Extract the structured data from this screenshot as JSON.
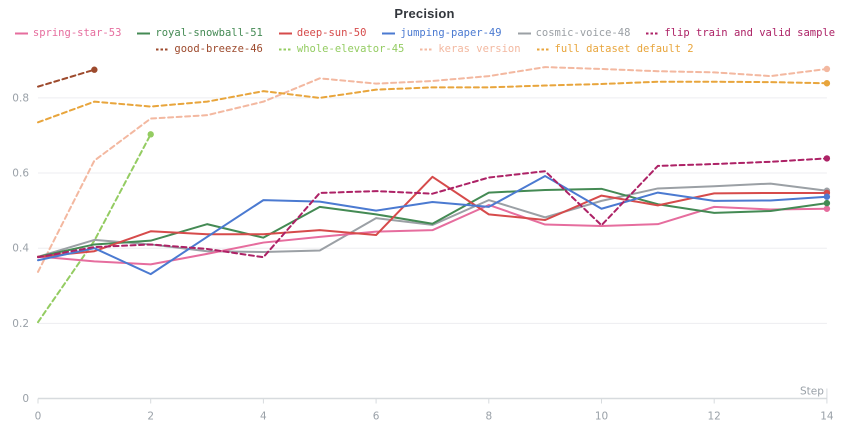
{
  "title": "Precision",
  "chart_data": {
    "type": "line",
    "title": "Precision",
    "xlabel": "Step",
    "ylabel": "",
    "xlim": [
      0,
      14
    ],
    "ylim": [
      0,
      0.95
    ],
    "grid": true,
    "legend_position": "top",
    "x_ticks": [
      0,
      2,
      4,
      6,
      8,
      10,
      12,
      14
    ],
    "y_ticks": [
      0,
      0.2,
      0.4,
      0.6,
      0.8
    ],
    "x": [
      0,
      1,
      2,
      3,
      4,
      5,
      6,
      7,
      8,
      9,
      10,
      11,
      12,
      13,
      14
    ],
    "series": [
      {
        "name": "keras version",
        "color": "#f3b8a0",
        "dashed": true,
        "values": [
          0.337,
          0.633,
          0.745,
          0.754,
          0.79,
          0.852,
          0.838,
          0.845,
          0.858,
          0.882,
          0.877,
          0.871,
          0.868,
          0.858,
          0.877
        ]
      },
      {
        "name": "full dataset default 2",
        "color": "#e8a53c",
        "dashed": true,
        "values": [
          0.735,
          0.79,
          0.777,
          0.79,
          0.818,
          0.8,
          0.822,
          0.828,
          0.828,
          0.833,
          0.837,
          0.843,
          0.843,
          0.842,
          0.839
        ]
      },
      {
        "name": "whole-elevator-45",
        "color": "#94cc62",
        "dashed": true,
        "values": [
          0.203,
          0.42,
          0.703
        ]
      },
      {
        "name": "good-breeze-46",
        "color": "#9d4a2d",
        "dashed": true,
        "values": [
          0.83,
          0.875
        ]
      },
      {
        "name": "cosmic-voice-48",
        "color": "#9ba0a5",
        "dashed": false,
        "values": [
          0.377,
          0.422,
          0.41,
          0.392,
          0.39,
          0.394,
          0.48,
          0.462,
          0.528,
          0.482,
          0.526,
          0.559,
          0.565,
          0.572,
          0.553
        ]
      },
      {
        "name": "spring-star-53",
        "color": "#e66d9e",
        "dashed": false,
        "values": [
          0.378,
          0.365,
          0.357,
          0.385,
          0.415,
          0.43,
          0.444,
          0.448,
          0.515,
          0.463,
          0.459,
          0.464,
          0.51,
          0.503,
          0.505
        ]
      },
      {
        "name": "royal-snowball-51",
        "color": "#448a54",
        "dashed": false,
        "values": [
          0.377,
          0.41,
          0.42,
          0.464,
          0.428,
          0.51,
          0.49,
          0.465,
          0.548,
          0.555,
          0.558,
          0.517,
          0.494,
          0.499,
          0.52
        ]
      },
      {
        "name": "deep-sun-50",
        "color": "#d64b4b",
        "dashed": false,
        "values": [
          0.377,
          0.392,
          0.445,
          0.437,
          0.437,
          0.448,
          0.435,
          0.59,
          0.49,
          0.475,
          0.54,
          0.514,
          0.546,
          0.547,
          0.547
        ]
      },
      {
        "name": "jumping-paper-49",
        "color": "#4b7ad1",
        "dashed": false,
        "values": [
          0.368,
          0.4,
          0.331,
          0.43,
          0.528,
          0.524,
          0.5,
          0.523,
          0.51,
          0.592,
          0.505,
          0.548,
          0.526,
          0.527,
          0.537
        ]
      },
      {
        "name": "flip train and valid sample",
        "color": "#ad2266",
        "dashed": true,
        "values": [
          0.376,
          0.403,
          0.41,
          0.398,
          0.376,
          0.547,
          0.552,
          0.545,
          0.588,
          0.605,
          0.461,
          0.619,
          0.624,
          0.63,
          0.639
        ]
      }
    ],
    "legend_rows": [
      [
        "spring-star-53",
        "royal-snowball-51",
        "deep-sun-50",
        "jumping-paper-49",
        "cosmic-voice-48",
        "flip train and valid sample"
      ],
      [
        "good-breeze-46",
        "whole-elevator-45",
        "keras version",
        "full dataset default 2"
      ]
    ]
  },
  "colors": {
    "grid": "#ededf0",
    "axis": "#d7dbde",
    "tick_text": "#9aa1a8",
    "title_text": "#33373d"
  }
}
